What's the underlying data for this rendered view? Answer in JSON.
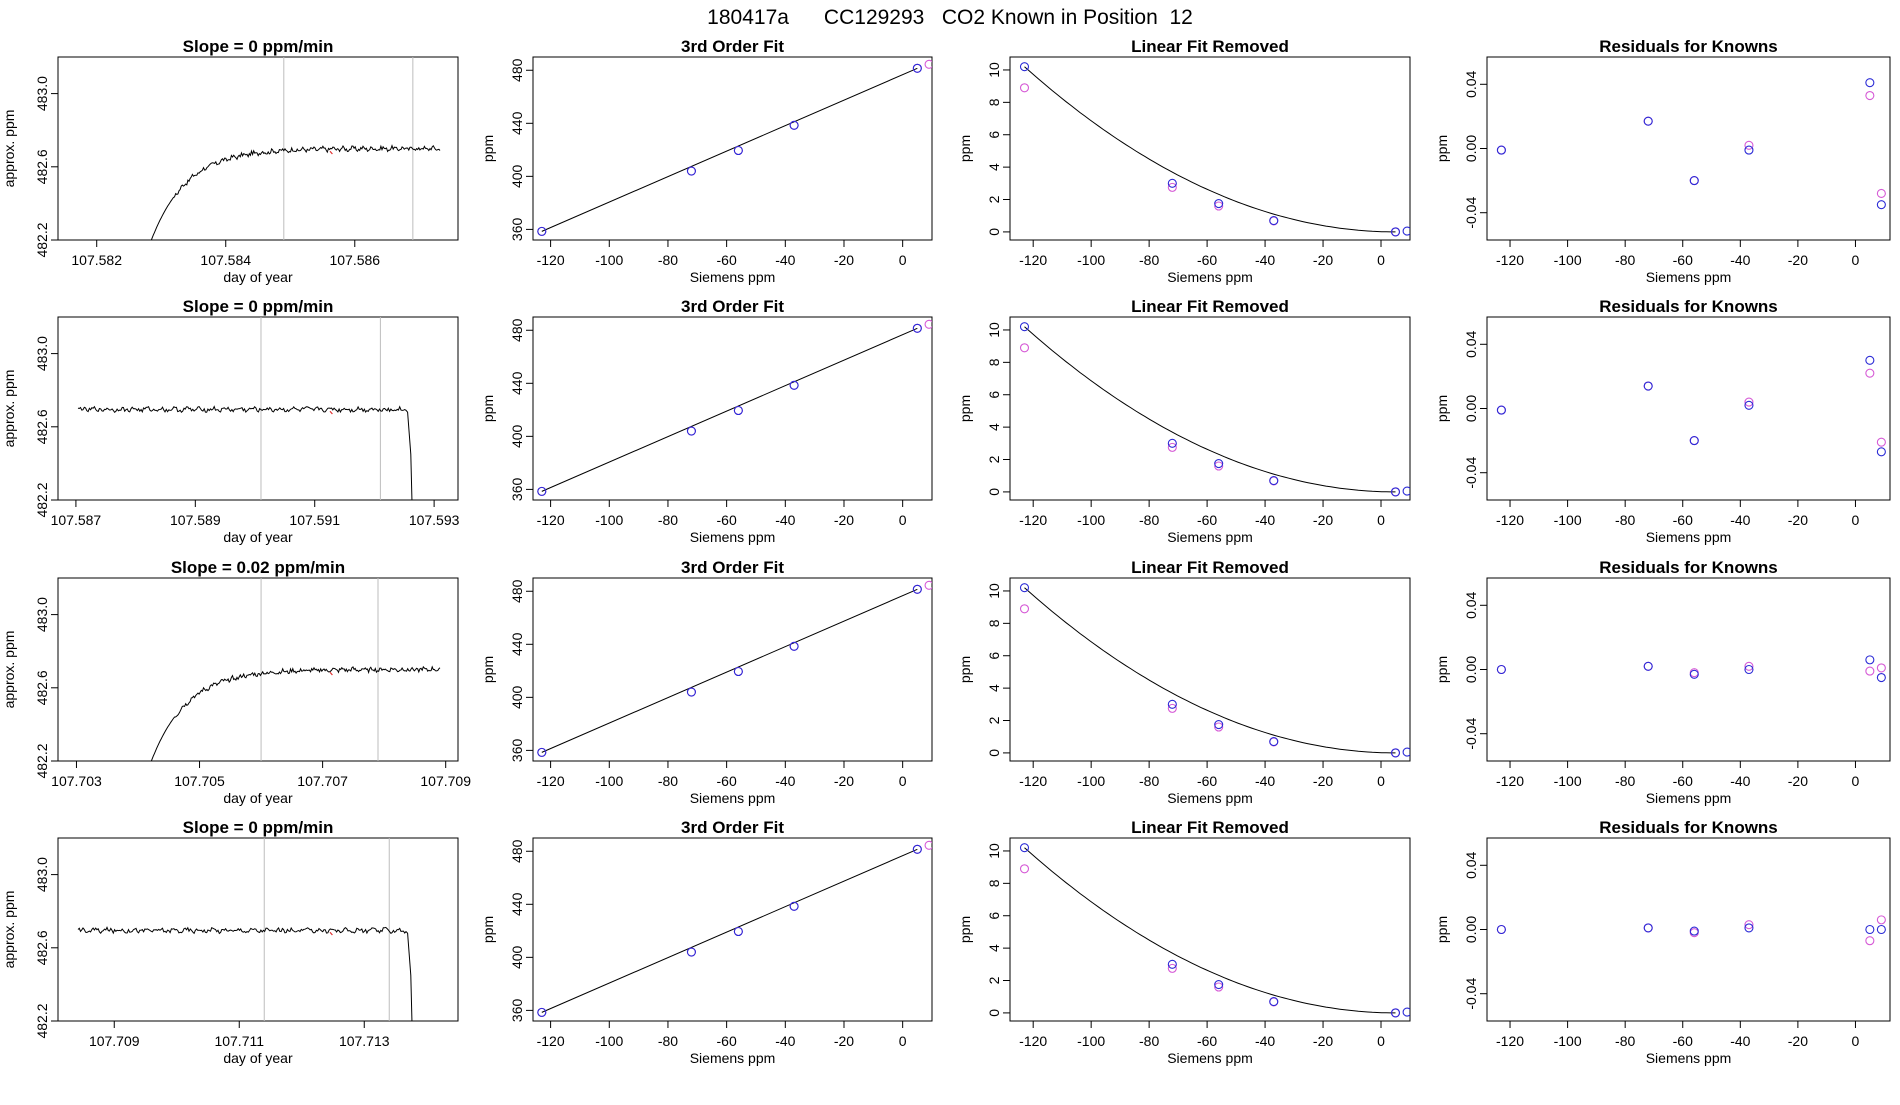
{
  "page_title": "180417a      CC129293   CO2 Known in Position  12",
  "colors": {
    "line": "#000000",
    "blue": "#2b2bd6",
    "magenta": "#d65ad6",
    "red": "#e03030",
    "grey": "#bdbdbd"
  },
  "chart_data": [
    {
      "type": "line",
      "title": "Slope =  0  ppm/min",
      "xlabel": "day of year",
      "ylabel": "approx. ppm",
      "xlim": [
        107.5814,
        107.5876
      ],
      "ylim": [
        482.2,
        483.2
      ],
      "xticks": [
        107.582,
        107.584,
        107.586
      ],
      "yticks": [
        482.2,
        482.6,
        483.0
      ],
      "vlines": [
        107.5849,
        107.5869
      ],
      "series_desc": "rise"
    },
    {
      "type": "line",
      "title": "3rd Order Fit",
      "xlabel": "Siemens ppm",
      "ylabel": "ppm",
      "xlim": [
        -126,
        10
      ],
      "ylim": [
        352,
        490
      ],
      "xticks": [
        -120,
        -100,
        -80,
        -60,
        -40,
        -20,
        0
      ],
      "yticks": [
        360,
        400,
        440,
        480
      ],
      "points_blue": [
        [
          -123,
          358.5
        ],
        [
          -72,
          404
        ],
        [
          -56,
          419.5
        ],
        [
          -37,
          438.5
        ],
        [
          5,
          481.5
        ]
      ],
      "points_mag": [
        [
          -123,
          358.5
        ],
        [
          -72,
          404
        ],
        [
          -56,
          419.5
        ],
        [
          -37,
          438.5
        ],
        [
          5,
          481.5
        ],
        [
          9,
          484.5
        ]
      ],
      "fit": "cubic"
    },
    {
      "type": "scatter",
      "title": "Linear Fit Removed",
      "xlabel": "Siemens ppm",
      "ylabel": "ppm",
      "xlim": [
        -128,
        10
      ],
      "ylim": [
        -0.5,
        10.8
      ],
      "xticks": [
        -120,
        -100,
        -80,
        -60,
        -40,
        -20,
        0
      ],
      "yticks": [
        0,
        2,
        4,
        6,
        8,
        10
      ],
      "points_blue": [
        [
          -123,
          10.2
        ],
        [
          -72,
          3.0
        ],
        [
          -56,
          1.75
        ],
        [
          -37,
          0.7
        ],
        [
          5,
          0
        ],
        [
          9,
          0.05
        ]
      ],
      "points_mag": [
        [
          -123,
          8.9
        ],
        [
          -72,
          2.75
        ],
        [
          -56,
          1.6
        ],
        [
          -37,
          0.68
        ],
        [
          5,
          0
        ]
      ],
      "curve": "quadratic"
    },
    {
      "type": "scatter",
      "title": "Residuals for Knowns",
      "xlabel": "Siemens ppm",
      "ylabel": "ppm",
      "xlim": [
        -128,
        12
      ],
      "ylim": [
        -0.057,
        0.057
      ],
      "xticks": [
        -120,
        -100,
        -80,
        -60,
        -40,
        -20,
        0
      ],
      "yticks": [
        -0.04,
        0.0,
        0.04
      ],
      "points_blue": [
        [
          -123,
          -0.001
        ],
        [
          -72,
          0.017
        ],
        [
          -56,
          -0.02
        ],
        [
          -37,
          -0.001
        ],
        [
          5,
          0.041
        ],
        [
          9,
          -0.035
        ]
      ],
      "points_mag": [
        [
          -123,
          -0.001
        ],
        [
          -72,
          0.017
        ],
        [
          -56,
          -0.02
        ],
        [
          -37,
          0.002
        ],
        [
          5,
          0.033
        ],
        [
          9,
          -0.028
        ]
      ]
    },
    {
      "type": "line",
      "title": "Slope =  0  ppm/min",
      "xlabel": "day of year",
      "ylabel": "approx. ppm",
      "xlim": [
        107.5867,
        107.5934
      ],
      "ylim": [
        482.2,
        483.2
      ],
      "xticks": [
        107.587,
        107.589,
        107.591,
        107.593
      ],
      "yticks": [
        482.2,
        482.6,
        483.0
      ],
      "vlines": [
        107.5901,
        107.5921
      ],
      "series_desc": "flat-drop"
    },
    {
      "type": "line",
      "title": "3rd Order Fit",
      "xlabel": "Siemens ppm",
      "ylabel": "ppm",
      "xlim": [
        -126,
        10
      ],
      "ylim": [
        352,
        490
      ],
      "xticks": [
        -120,
        -100,
        -80,
        -60,
        -40,
        -20,
        0
      ],
      "yticks": [
        360,
        400,
        440,
        480
      ],
      "points_blue": [
        [
          -123,
          358.5
        ],
        [
          -72,
          404
        ],
        [
          -56,
          419.5
        ],
        [
          -37,
          438.5
        ],
        [
          5,
          481.5
        ]
      ],
      "points_mag": [
        [
          -123,
          358.5
        ],
        [
          -72,
          404
        ],
        [
          -56,
          419.5
        ],
        [
          -37,
          438.5
        ],
        [
          5,
          481.5
        ],
        [
          9,
          484.5
        ]
      ],
      "fit": "cubic"
    },
    {
      "type": "scatter",
      "title": "Linear Fit Removed",
      "xlabel": "Siemens ppm",
      "ylabel": "ppm",
      "xlim": [
        -128,
        10
      ],
      "ylim": [
        -0.5,
        10.8
      ],
      "xticks": [
        -120,
        -100,
        -80,
        -60,
        -40,
        -20,
        0
      ],
      "yticks": [
        0,
        2,
        4,
        6,
        8,
        10
      ],
      "points_blue": [
        [
          -123,
          10.2
        ],
        [
          -72,
          3.0
        ],
        [
          -56,
          1.75
        ],
        [
          -37,
          0.7
        ],
        [
          5,
          0
        ],
        [
          9,
          0.05
        ]
      ],
      "points_mag": [
        [
          -123,
          8.9
        ],
        [
          -72,
          2.75
        ],
        [
          -56,
          1.6
        ],
        [
          -37,
          0.68
        ],
        [
          5,
          0
        ]
      ],
      "curve": "quadratic"
    },
    {
      "type": "scatter",
      "title": "Residuals for Knowns",
      "xlabel": "Siemens ppm",
      "ylabel": "ppm",
      "xlim": [
        -128,
        12
      ],
      "ylim": [
        -0.057,
        0.057
      ],
      "xticks": [
        -120,
        -100,
        -80,
        -60,
        -40,
        -20,
        0
      ],
      "yticks": [
        -0.04,
        0.0,
        0.04
      ],
      "points_blue": [
        [
          -123,
          -0.001
        ],
        [
          -72,
          0.014
        ],
        [
          -56,
          -0.02
        ],
        [
          -37,
          0.002
        ],
        [
          5,
          0.03
        ],
        [
          9,
          -0.027
        ]
      ],
      "points_mag": [
        [
          -123,
          -0.001
        ],
        [
          -72,
          0.014
        ],
        [
          -56,
          -0.02
        ],
        [
          -37,
          0.004
        ],
        [
          5,
          0.022
        ],
        [
          9,
          -0.021
        ]
      ]
    },
    {
      "type": "line",
      "title": "Slope =  0.02  ppm/min",
      "xlabel": "day of year",
      "ylabel": "approx. ppm",
      "xlim": [
        107.7027,
        107.7092
      ],
      "ylim": [
        482.2,
        483.2
      ],
      "xticks": [
        107.703,
        107.705,
        107.707,
        107.709
      ],
      "yticks": [
        482.2,
        482.6,
        483.0
      ],
      "vlines": [
        107.706,
        107.7079
      ],
      "series_desc": "rise"
    },
    {
      "type": "line",
      "title": "3rd Order Fit",
      "xlabel": "Siemens ppm",
      "ylabel": "ppm",
      "xlim": [
        -126,
        10
      ],
      "ylim": [
        352,
        490
      ],
      "xticks": [
        -120,
        -100,
        -80,
        -60,
        -40,
        -20,
        0
      ],
      "yticks": [
        360,
        400,
        440,
        480
      ],
      "points_blue": [
        [
          -123,
          358.5
        ],
        [
          -72,
          404
        ],
        [
          -56,
          419.5
        ],
        [
          -37,
          438.5
        ],
        [
          5,
          481.5
        ]
      ],
      "points_mag": [
        [
          -123,
          358.5
        ],
        [
          -72,
          404
        ],
        [
          -56,
          419.5
        ],
        [
          -37,
          438.5
        ],
        [
          5,
          481.5
        ],
        [
          9,
          484.5
        ]
      ],
      "fit": "cubic"
    },
    {
      "type": "scatter",
      "title": "Linear Fit Removed",
      "xlabel": "Siemens ppm",
      "ylabel": "ppm",
      "xlim": [
        -128,
        10
      ],
      "ylim": [
        -0.5,
        10.8
      ],
      "xticks": [
        -120,
        -100,
        -80,
        -60,
        -40,
        -20,
        0
      ],
      "yticks": [
        0,
        2,
        4,
        6,
        8,
        10
      ],
      "points_blue": [
        [
          -123,
          10.2
        ],
        [
          -72,
          3.0
        ],
        [
          -56,
          1.75
        ],
        [
          -37,
          0.7
        ],
        [
          5,
          0
        ],
        [
          9,
          0.05
        ]
      ],
      "points_mag": [
        [
          -123,
          8.9
        ],
        [
          -72,
          2.75
        ],
        [
          -56,
          1.6
        ],
        [
          -37,
          0.68
        ],
        [
          5,
          0
        ]
      ],
      "curve": "quadratic"
    },
    {
      "type": "scatter",
      "title": "Residuals for Knowns",
      "xlabel": "Siemens ppm",
      "ylabel": "ppm",
      "xlim": [
        -128,
        12
      ],
      "ylim": [
        -0.057,
        0.057
      ],
      "xticks": [
        -120,
        -100,
        -80,
        -60,
        -40,
        -20,
        0
      ],
      "yticks": [
        -0.04,
        0.0,
        0.04
      ],
      "points_blue": [
        [
          -123,
          0.0
        ],
        [
          -72,
          0.002
        ],
        [
          -56,
          -0.003
        ],
        [
          -37,
          0.0
        ],
        [
          5,
          0.006
        ],
        [
          9,
          -0.005
        ]
      ],
      "points_mag": [
        [
          -123,
          0.0
        ],
        [
          -72,
          0.002
        ],
        [
          -56,
          -0.002
        ],
        [
          -37,
          0.002
        ],
        [
          5,
          -0.001
        ],
        [
          9,
          0.001
        ]
      ]
    },
    {
      "type": "line",
      "title": "Slope =  0  ppm/min",
      "xlabel": "day of year",
      "ylabel": "approx. ppm",
      "xlim": [
        107.7081,
        107.7145
      ],
      "ylim": [
        482.2,
        483.2
      ],
      "xticks": [
        107.709,
        107.711,
        107.713
      ],
      "yticks": [
        482.2,
        482.6,
        483.0
      ],
      "vlines": [
        107.7114,
        107.7134
      ],
      "series_desc": "flat-drop"
    },
    {
      "type": "line",
      "title": "3rd Order Fit",
      "xlabel": "Siemens ppm",
      "ylabel": "ppm",
      "xlim": [
        -126,
        10
      ],
      "ylim": [
        352,
        490
      ],
      "xticks": [
        -120,
        -100,
        -80,
        -60,
        -40,
        -20,
        0
      ],
      "yticks": [
        360,
        400,
        440,
        480
      ],
      "points_blue": [
        [
          -123,
          358.5
        ],
        [
          -72,
          404
        ],
        [
          -56,
          419.5
        ],
        [
          -37,
          438.5
        ],
        [
          5,
          481.5
        ]
      ],
      "points_mag": [
        [
          -123,
          358.5
        ],
        [
          -72,
          404
        ],
        [
          -56,
          419.5
        ],
        [
          -37,
          438.5
        ],
        [
          5,
          481.5
        ],
        [
          9,
          484.5
        ]
      ],
      "fit": "cubic"
    },
    {
      "type": "scatter",
      "title": "Linear Fit Removed",
      "xlabel": "Siemens ppm",
      "ylabel": "ppm",
      "xlim": [
        -128,
        10
      ],
      "ylim": [
        -0.5,
        10.8
      ],
      "xticks": [
        -120,
        -100,
        -80,
        -60,
        -40,
        -20,
        0
      ],
      "yticks": [
        0,
        2,
        4,
        6,
        8,
        10
      ],
      "points_blue": [
        [
          -123,
          10.2
        ],
        [
          -72,
          3.0
        ],
        [
          -56,
          1.75
        ],
        [
          -37,
          0.7
        ],
        [
          5,
          0
        ],
        [
          9,
          0.05
        ]
      ],
      "points_mag": [
        [
          -123,
          8.9
        ],
        [
          -72,
          2.75
        ],
        [
          -56,
          1.6
        ],
        [
          -37,
          0.68
        ],
        [
          5,
          0
        ]
      ],
      "curve": "quadratic"
    },
    {
      "type": "scatter",
      "title": "Residuals for Knowns",
      "xlabel": "Siemens ppm",
      "ylabel": "ppm",
      "xlim": [
        -128,
        12
      ],
      "ylim": [
        -0.057,
        0.057
      ],
      "xticks": [
        -120,
        -100,
        -80,
        -60,
        -40,
        -20,
        0
      ],
      "yticks": [
        -0.04,
        0.0,
        0.04
      ],
      "points_blue": [
        [
          -123,
          0.0
        ],
        [
          -72,
          0.001
        ],
        [
          -56,
          -0.001
        ],
        [
          -37,
          0.001
        ],
        [
          5,
          0.0
        ],
        [
          9,
          0.0
        ]
      ],
      "points_mag": [
        [
          -123,
          0.0
        ],
        [
          -72,
          0.001
        ],
        [
          -56,
          -0.002
        ],
        [
          -37,
          0.003
        ],
        [
          5,
          -0.007
        ],
        [
          9,
          0.006
        ]
      ]
    }
  ]
}
